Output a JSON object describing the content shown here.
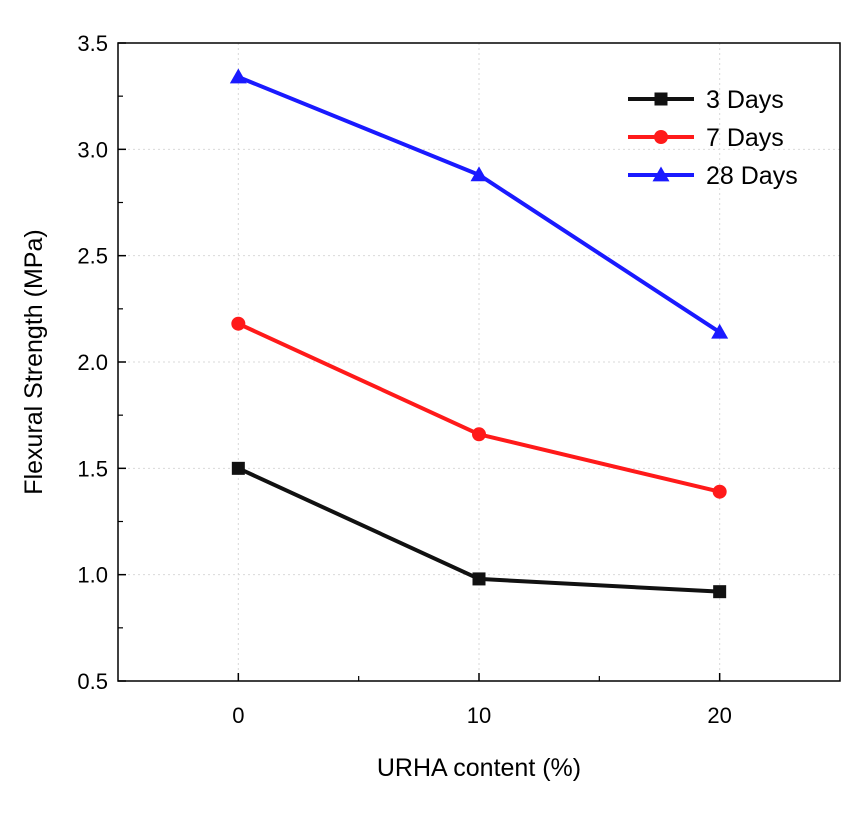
{
  "chart_data": {
    "type": "line",
    "title": "",
    "xlabel": "URHA content (%)",
    "ylabel": "Flexural Strength (MPa)",
    "x": [
      0,
      10,
      20
    ],
    "xlim": [
      -5,
      25
    ],
    "ylim": [
      0.5,
      3.5
    ],
    "xticks": [
      0,
      10,
      20
    ],
    "xtick_labels": [
      "0",
      "10",
      "20"
    ],
    "yticks": [
      0.5,
      1.0,
      1.5,
      2.0,
      2.5,
      3.0,
      3.5
    ],
    "ytick_labels": [
      "0.5",
      "1.0",
      "1.5",
      "2.0",
      "2.5",
      "3.0",
      "3.5"
    ],
    "grid": true,
    "legend_position": "top-right",
    "series": [
      {
        "name": "3 Days",
        "values": [
          1.5,
          0.98,
          0.92
        ],
        "color": "#111111",
        "marker": "square"
      },
      {
        "name": "7 Days",
        "values": [
          2.18,
          1.66,
          1.39
        ],
        "color": "#ff1a1a",
        "marker": "circle"
      },
      {
        "name": "28 Days",
        "values": [
          3.34,
          2.88,
          2.14
        ],
        "color": "#1a1aff",
        "marker": "triangle"
      }
    ]
  }
}
